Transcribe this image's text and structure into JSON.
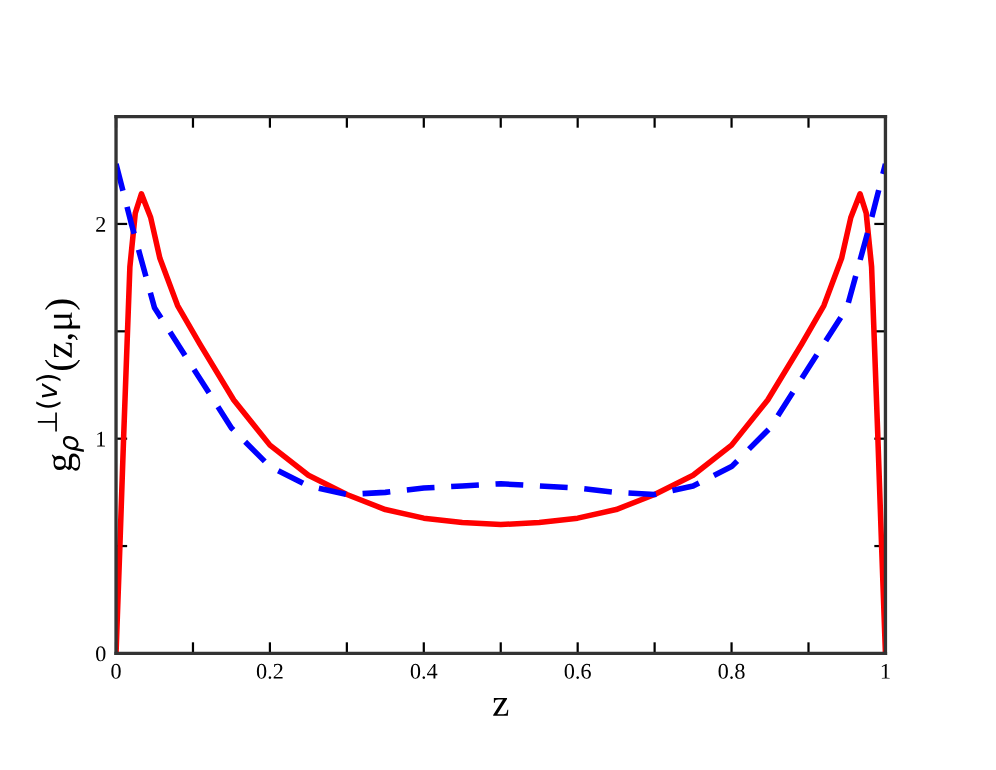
{
  "chart_data": {
    "type": "line",
    "xlabel": "z",
    "ylabel": "g$_{ρ}$$^{⊥(v)}$(z,μ)",
    "xlim": [
      0,
      1
    ],
    "ylim": [
      0,
      2.5
    ],
    "xticks": [
      0,
      {
        "value": 0.1,
        "label": null
      },
      0.2,
      {
        "value": 0.3,
        "label": null
      },
      0.4,
      {
        "value": 0.5,
        "label": null
      },
      0.6,
      {
        "value": 0.7,
        "label": null
      },
      0.8,
      {
        "value": 0.9,
        "label": null
      },
      1
    ],
    "yticks": [
      0,
      {
        "value": 0.5,
        "label": null
      },
      1,
      {
        "value": 1.5,
        "label": null
      },
      2,
      {
        "value": 2.5,
        "label": null
      }
    ],
    "grid": false,
    "legend": false,
    "marker": "none",
    "series": [
      {
        "color": "#ff0000",
        "line_style": "solid",
        "x": [
          0,
          0.005,
          0.01,
          0.018,
          0.025,
          0.033,
          0.045,
          0.057,
          0.08,
          0.109,
          0.153,
          0.2,
          0.25,
          0.3,
          0.35,
          0.4,
          0.45,
          0.5,
          0.55,
          0.6,
          0.65,
          0.7,
          0.75,
          0.8,
          0.847,
          0.891,
          0.92,
          0.943,
          0.955,
          0.967,
          0.975,
          0.982,
          0.99,
          0.995,
          1
        ],
        "values": [
          0,
          0.5,
          1.02,
          1.8,
          2.05,
          2.14,
          2.03,
          1.84,
          1.62,
          1.44,
          1.18,
          0.97,
          0.83,
          0.74,
          0.67,
          0.63,
          0.61,
          0.6,
          0.61,
          0.63,
          0.67,
          0.74,
          0.83,
          0.97,
          1.18,
          1.44,
          1.62,
          1.84,
          2.03,
          2.14,
          2.05,
          1.8,
          1.02,
          0.5,
          0
        ]
      },
      {
        "color": "#0000ff",
        "line_style": "dashed",
        "x": [
          0,
          0.02,
          0.05,
          0.1,
          0.15,
          0.2,
          0.25,
          0.3,
          0.35,
          0.4,
          0.45,
          0.5,
          0.55,
          0.6,
          0.65,
          0.7,
          0.75,
          0.8,
          0.85,
          0.9,
          0.95,
          0.98,
          1
        ],
        "values": [
          2.28,
          2.0,
          1.61,
          1.33,
          1.05,
          0.87,
          0.78,
          0.74,
          0.75,
          0.77,
          0.78,
          0.79,
          0.78,
          0.77,
          0.75,
          0.74,
          0.78,
          0.87,
          1.05,
          1.33,
          1.61,
          2.0,
          2.28
        ]
      }
    ]
  }
}
